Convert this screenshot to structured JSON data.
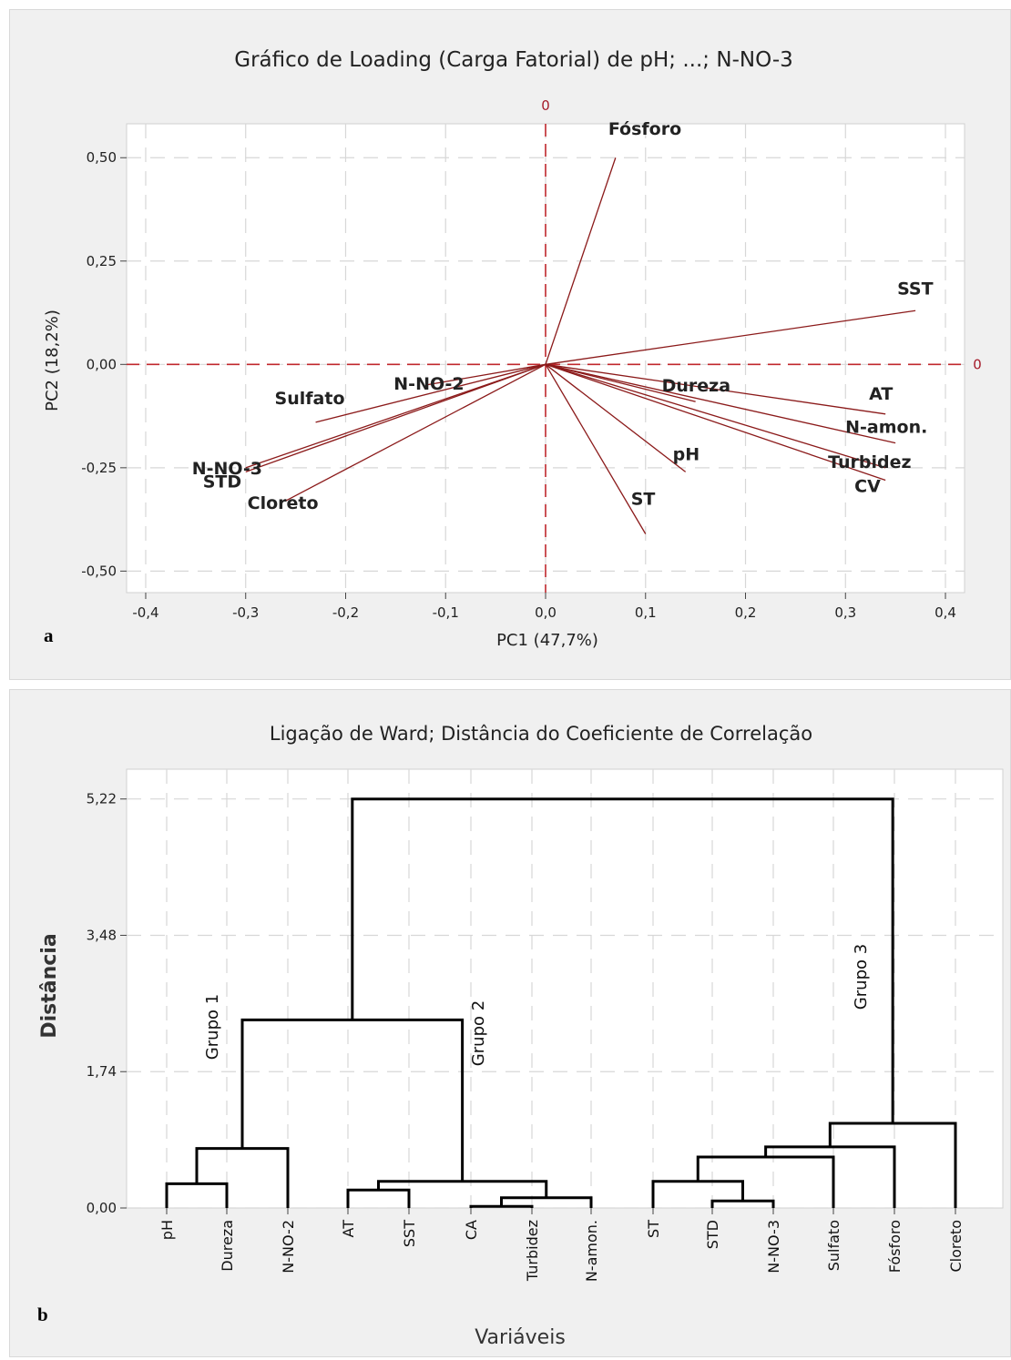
{
  "panel_a": {
    "letter": "a",
    "title": "Gráfico de Loading (Carga Fatorial) de pH; ...; N-NO-3",
    "xlabel": "PC1 (47,7%)",
    "ylabel": "PC2 (18,2%)",
    "ref_label_x": "0",
    "ref_label_y": "0",
    "x_ticks": [
      "-0,4",
      "-0,3",
      "-0,2",
      "-0,1",
      "0,0",
      "0,1",
      "0,2",
      "0,3",
      "0,4"
    ],
    "y_ticks": [
      "0,50",
      "0,25",
      "0,00",
      "-0,25",
      "-0,50"
    ]
  },
  "panel_b": {
    "letter": "b",
    "title": "Ligação de Ward; Distância do Coeficiente de Correlação",
    "xlabel": "Variáveis",
    "ylabel": "Distância",
    "y_ticks": [
      "5,22",
      "3,48",
      "1,74",
      "0,00"
    ],
    "groups": [
      "Grupo 1",
      "Grupo 2",
      "Grupo 3"
    ],
    "leaves": [
      "pH",
      "Dureza",
      "N-NO-2",
      "AT",
      "SST",
      "CA",
      "Turbidez",
      "N-amon.",
      "ST",
      "STD",
      "N-NO-3",
      "Sulfato",
      "Fósforo",
      "Cloreto"
    ]
  },
  "chart_data": [
    {
      "type": "scatter",
      "title": "Gráfico de Loading (Carga Fatorial) de pH; ...; N-NO-3",
      "xlabel": "PC1 (47,7%)",
      "ylabel": "PC2 (18,2%)",
      "xlim": [
        -0.41,
        0.41
      ],
      "ylim": [
        -0.53,
        0.56
      ],
      "grid": true,
      "reference_lines": {
        "x": 0,
        "y": 0
      },
      "loadings": [
        {
          "label": "Fósforo",
          "x": 0.07,
          "y": 0.5
        },
        {
          "label": "SST",
          "x": 0.37,
          "y": 0.13
        },
        {
          "label": "N-NO-2",
          "x": -0.12,
          "y": -0.05
        },
        {
          "label": "Sulfato",
          "x": -0.23,
          "y": -0.14
        },
        {
          "label": "N-NO-3",
          "x": -0.3,
          "y": -0.25
        },
        {
          "label": "STD",
          "x": -0.3,
          "y": -0.26
        },
        {
          "label": "Cloreto",
          "x": -0.26,
          "y": -0.33
        },
        {
          "label": "Dureza",
          "x": 0.15,
          "y": -0.09
        },
        {
          "label": "AT",
          "x": 0.34,
          "y": -0.12
        },
        {
          "label": "N-amon.",
          "x": 0.35,
          "y": -0.19
        },
        {
          "label": "Turbidez",
          "x": 0.34,
          "y": -0.25
        },
        {
          "label": "CV",
          "x": 0.34,
          "y": -0.28
        },
        {
          "label": "pH",
          "x": 0.14,
          "y": -0.26
        },
        {
          "label": "ST",
          "x": 0.1,
          "y": -0.41
        }
      ]
    },
    {
      "type": "dendrogram",
      "title": "Ligação de Ward; Distância do Coeficiente de Correlação",
      "xlabel": "Variáveis",
      "ylabel": "Distância",
      "ylim": [
        0,
        5.6
      ],
      "y_ticks": [
        0,
        1.74,
        3.48,
        5.22
      ],
      "leaves": [
        "pH",
        "Dureza",
        "N-NO-2",
        "AT",
        "SST",
        "CA",
        "Turbidez",
        "N-amon.",
        "ST",
        "STD",
        "N-NO-3",
        "Sulfato",
        "Fósforo",
        "Cloreto"
      ],
      "merges": [
        {
          "a": "pH",
          "b": "Dureza",
          "height": 0.31
        },
        {
          "a": "pH+Dureza",
          "b": "N-NO-2",
          "height": 0.76
        },
        {
          "a": "AT",
          "b": "SST",
          "height": 0.23
        },
        {
          "a": "CA",
          "b": "Turbidez",
          "height": 0.02
        },
        {
          "a": "CA+Turbidez",
          "b": "N-amon.",
          "height": 0.13
        },
        {
          "a": "AT+SST",
          "b": "CA+Turbidez+N-amon.",
          "height": 0.34
        },
        {
          "a": "Grupo 1",
          "b": "Grupo 2",
          "height": 2.4
        },
        {
          "a": "STD",
          "b": "N-NO-3",
          "height": 0.09
        },
        {
          "a": "ST",
          "b": "STD+N-NO-3",
          "height": 0.34
        },
        {
          "a": "ST+STD+N-NO-3",
          "b": "Sulfato",
          "height": 0.65
        },
        {
          "a": "ST+STD+N-NO-3+Sulfato",
          "b": "Fósforo",
          "height": 0.78
        },
        {
          "a": "ST+STD+N-NO-3+Sulfato+Fósforo",
          "b": "Cloreto",
          "height": 1.08
        },
        {
          "a": "Grupo 1+Grupo 2",
          "b": "Grupo 3",
          "height": 5.22
        }
      ],
      "groups": [
        {
          "name": "Grupo 1",
          "members": [
            "pH",
            "Dureza",
            "N-NO-2"
          ]
        },
        {
          "name": "Grupo 2",
          "members": [
            "AT",
            "SST",
            "CA",
            "Turbidez",
            "N-amon."
          ]
        },
        {
          "name": "Grupo 3",
          "members": [
            "ST",
            "STD",
            "N-NO-3",
            "Sulfato",
            "Fósforo",
            "Cloreto"
          ]
        }
      ]
    }
  ]
}
